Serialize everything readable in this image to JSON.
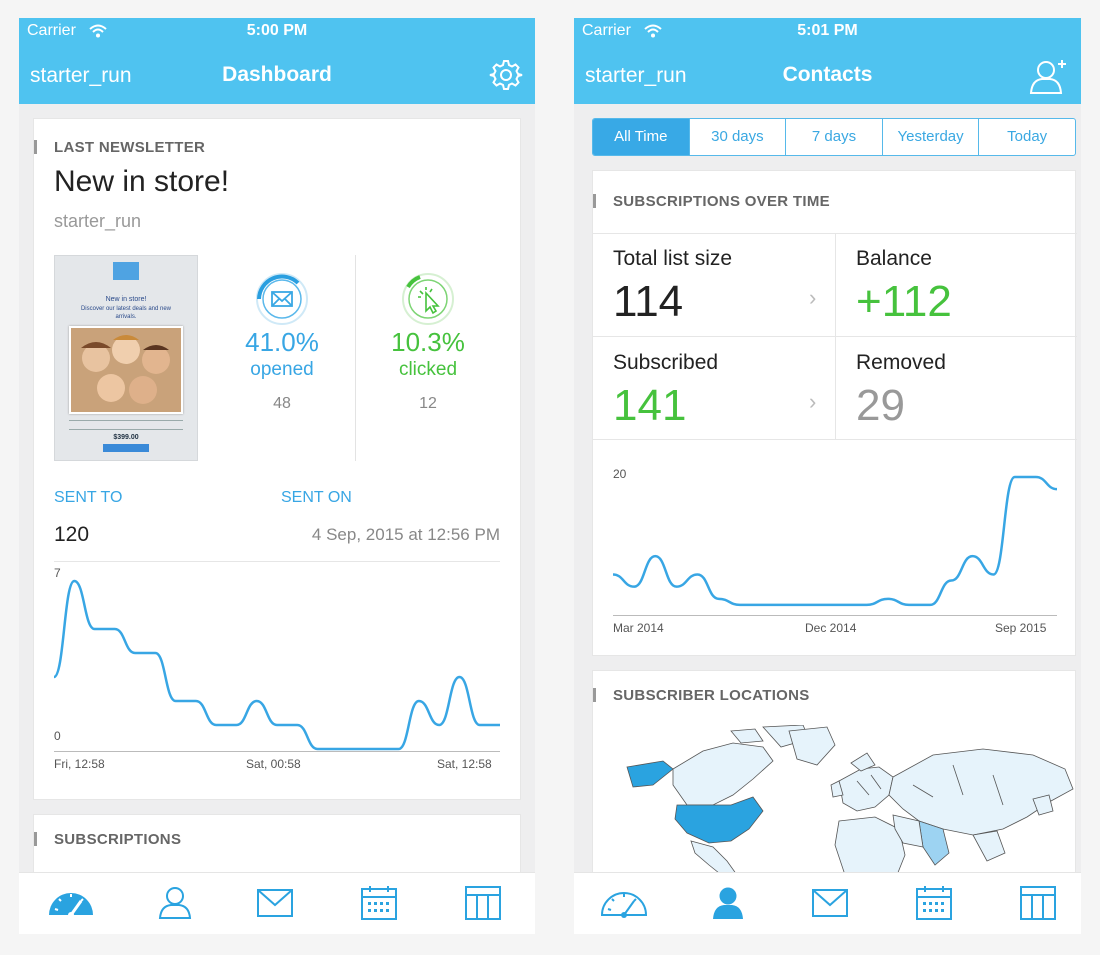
{
  "status_left": {
    "carrier": "Carrier",
    "time": "5:00 PM"
  },
  "status_right": {
    "carrier": "Carrier",
    "time": "5:01 PM"
  },
  "dashboard": {
    "account": "starter_run",
    "title": "Dashboard",
    "last_newsletter": {
      "heading": "LAST NEWSLETTER",
      "name": "New in store!",
      "sender": "starter_run",
      "thumb_title": "New in store!",
      "thumb_line1": "Discover our latest deals and new",
      "thumb_line2": "arrivals.",
      "thumb_price": "$399.00",
      "opened_pct": "41.0%",
      "opened_label": "opened",
      "opened_count": "48",
      "clicked_pct": "10.3%",
      "clicked_label": "clicked",
      "clicked_count": "12",
      "sent_to_label": "SENT TO",
      "sent_to_value": "120",
      "sent_on_label": "SENT ON",
      "sent_on_value": "4 Sep, 2015 at 12:56 PM"
    },
    "chart_y_max": "7",
    "chart_y_min": "0",
    "chart_x_ticks": [
      "Fri, 12:58",
      "Sat, 00:58",
      "Sat, 12:58"
    ],
    "subscriptions_heading": "SUBSCRIPTIONS"
  },
  "contacts": {
    "account": "starter_run",
    "title": "Contacts",
    "tabs": [
      "All Time",
      "30 days",
      "7 days",
      "Yesterday",
      "Today"
    ],
    "subs_heading": "SUBSCRIPTIONS OVER TIME",
    "stats": {
      "total_label": "Total list size",
      "total_value": "114",
      "balance_label": "Balance",
      "balance_value": "+112",
      "subscribed_label": "Subscribed",
      "subscribed_value": "141",
      "removed_label": "Removed",
      "removed_value": "29"
    },
    "chart_y_label": "20",
    "chart_x_ticks": [
      "Mar 2014",
      "Dec 2014",
      "Sep 2015"
    ],
    "locations_heading": "SUBSCRIBER LOCATIONS"
  },
  "chart_data": [
    {
      "type": "line",
      "x_ticks": [
        "Fri, 12:58",
        "Sat, 00:58",
        "Sat, 12:58"
      ],
      "ylim": [
        0,
        7
      ],
      "values": [
        3,
        7,
        5,
        5,
        4,
        4,
        2,
        2,
        1,
        1,
        2,
        1,
        1,
        0,
        0,
        0,
        0,
        0,
        2,
        1,
        3,
        1,
        1
      ]
    },
    {
      "type": "line",
      "x_ticks": [
        "Mar 2014",
        "Dec 2014",
        "Sep 2015"
      ],
      "ylim": [
        0,
        22
      ],
      "values": [
        6,
        4,
        9,
        4,
        6,
        2,
        1,
        1,
        1,
        1,
        1,
        1,
        1,
        2,
        1,
        1,
        5,
        9,
        6,
        22,
        22,
        20
      ]
    }
  ],
  "colors": {
    "nav": "#4fc3f0",
    "accent": "#38a6e4",
    "positive": "#46c23d",
    "map_highlight": "#2aa3e0"
  },
  "tabbar_icons": [
    "dashboard-icon",
    "contacts-icon",
    "mail-icon",
    "calendar-icon",
    "layout-icon"
  ]
}
